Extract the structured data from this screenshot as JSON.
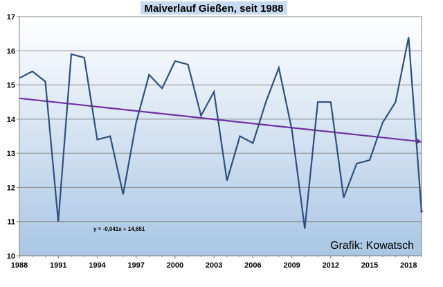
{
  "chart_data": {
    "type": "line",
    "title": "Maiverlauf Gießen, seit 1988",
    "credit": "Grafik: Kowatsch",
    "trend_equation": "y = -0,041x + 14,651",
    "xlim": [
      1988,
      2019
    ],
    "ylim": [
      10,
      17
    ],
    "x_ticks": [
      "1988",
      "1991",
      "1994",
      "1997",
      "2000",
      "2003",
      "2006",
      "2009",
      "2012",
      "2015",
      "2018"
    ],
    "y_ticks": [
      "10",
      "11",
      "12",
      "13",
      "14",
      "15",
      "16",
      "17"
    ],
    "grid": "horizontal",
    "series": [
      {
        "color": "#2E4F7A",
        "x": [
          1988,
          1989,
          1990,
          1991,
          1992,
          1993,
          1994,
          1995,
          1996,
          1997,
          1998,
          1999,
          2000,
          2001,
          2002,
          2003,
          2004,
          2005,
          2006,
          2007,
          2008,
          2009,
          2010,
          2011,
          2012,
          2013,
          2014,
          2015,
          2016,
          2017,
          2018,
          2019
        ],
        "y": [
          15.2,
          15.4,
          15.1,
          11.0,
          15.9,
          15.8,
          13.4,
          13.5,
          11.8,
          13.9,
          15.3,
          14.9,
          15.7,
          15.6,
          14.1,
          14.8,
          12.2,
          13.5,
          13.3,
          14.5,
          15.5,
          13.7,
          10.8,
          14.5,
          14.5,
          11.7,
          12.7,
          12.8,
          13.9,
          14.5,
          16.4,
          11.3
        ]
      }
    ],
    "trend": {
      "color": "#7030A0",
      "slope": -0.041,
      "intercept": 14.651,
      "x_start": 1988,
      "x_end": 2019
    },
    "colors": {
      "background_top": "#FFFFFF",
      "background_bottom": "#A9C6E4",
      "title_box": "#C7DBF0"
    }
  }
}
